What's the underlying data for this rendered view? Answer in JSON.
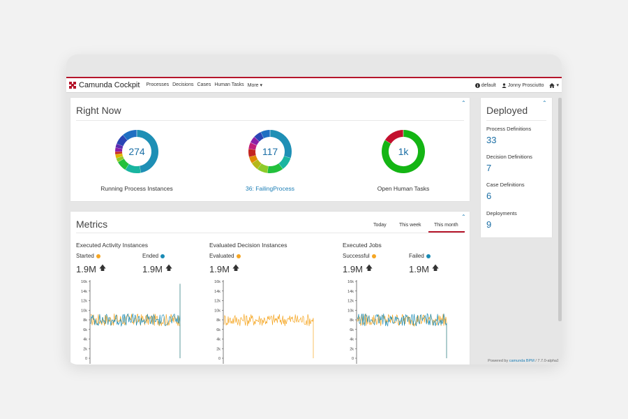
{
  "navbar": {
    "brand": "Camunda Cockpit",
    "links": [
      "Processes",
      "Decisions",
      "Cases",
      "Human Tasks",
      "More ▾"
    ],
    "engine": "default",
    "user": "Jonny Prosciutto",
    "home_caret": "▾"
  },
  "right_now": {
    "title": "Right Now",
    "collapse": "⌃",
    "donuts": [
      {
        "value": "274",
        "label": "Running Process Instances",
        "segments": [
          {
            "color": "#1e8fb5",
            "weight": 47
          },
          {
            "color": "#19b5a0",
            "weight": 12
          },
          {
            "color": "#22c03c",
            "weight": 8
          },
          {
            "color": "#8ecb2a",
            "weight": 3
          },
          {
            "color": "#e0b400",
            "weight": 3
          },
          {
            "color": "#c3241e",
            "weight": 2
          },
          {
            "color": "#8b1fa8",
            "weight": 3
          },
          {
            "color": "#5a2bb0",
            "weight": 3
          },
          {
            "color": "#2a45b5",
            "weight": 8
          },
          {
            "color": "#1f6fc2",
            "weight": 11
          }
        ]
      },
      {
        "value": "117",
        "label": "36: FailingProcess",
        "link": true,
        "segments": [
          {
            "color": "#1e8fb5",
            "weight": 30
          },
          {
            "color": "#19b5a0",
            "weight": 10
          },
          {
            "color": "#22c03c",
            "weight": 12
          },
          {
            "color": "#8ecb2a",
            "weight": 8
          },
          {
            "color": "#b5b818",
            "weight": 6
          },
          {
            "color": "#e08a00",
            "weight": 5
          },
          {
            "color": "#c3241e",
            "weight": 6
          },
          {
            "color": "#c21f7a",
            "weight": 5
          },
          {
            "color": "#8b1fa8",
            "weight": 5
          },
          {
            "color": "#2a45b5",
            "weight": 6
          },
          {
            "color": "#1f6fc2",
            "weight": 7
          }
        ]
      },
      {
        "value": "1k",
        "label": "Open Human Tasks",
        "segments": [
          {
            "color": "#14b514",
            "weight": 84
          },
          {
            "color": "#c3102e",
            "weight": 16
          }
        ]
      }
    ]
  },
  "deployed": {
    "title": "Deployed",
    "collapse": "⌃",
    "items": [
      {
        "label": "Process Definitions",
        "count": "33"
      },
      {
        "label": "Decision Definitions",
        "count": "7"
      },
      {
        "label": "Case Definitions",
        "count": "6"
      },
      {
        "label": "Deployments",
        "count": "9"
      }
    ]
  },
  "metrics": {
    "title": "Metrics",
    "collapse": "⌃",
    "tabs": [
      "Today",
      "This week",
      "This month"
    ],
    "active_tab": "This month",
    "colors": {
      "orange": "#f5a623",
      "blue": "#1a8bb5"
    },
    "groups": [
      {
        "title": "Executed Activity Instances",
        "stats": [
          {
            "label": "Started",
            "value": "1.9M",
            "dot": "orange"
          },
          {
            "label": "Ended",
            "value": "1.9M",
            "dot": "blue"
          }
        ],
        "series": [
          "orange",
          "blue"
        ],
        "spike": "end"
      },
      {
        "title": "Evaluated Decision Instances",
        "stats": [
          {
            "label": "Evaluated",
            "value": "1.9M",
            "dot": "orange"
          }
        ],
        "series": [
          "orange"
        ],
        "spike": "drop"
      },
      {
        "title": "Executed Jobs",
        "stats": [
          {
            "label": "Successful",
            "value": "1.9M",
            "dot": "orange"
          },
          {
            "label": "Failed",
            "value": "1.9M",
            "dot": "blue"
          }
        ],
        "series": [
          "orange",
          "blue"
        ],
        "spike": "drop"
      }
    ],
    "y_ticks": [
      "16k",
      "14k",
      "12k",
      "10k",
      "8k",
      "6k",
      "4k",
      "2k",
      "0"
    ],
    "approx_level": 8000
  },
  "footer": {
    "prefix": "Powered by",
    "link": "camunda BPM",
    "version": "/ 7.7.0-alpha1"
  }
}
